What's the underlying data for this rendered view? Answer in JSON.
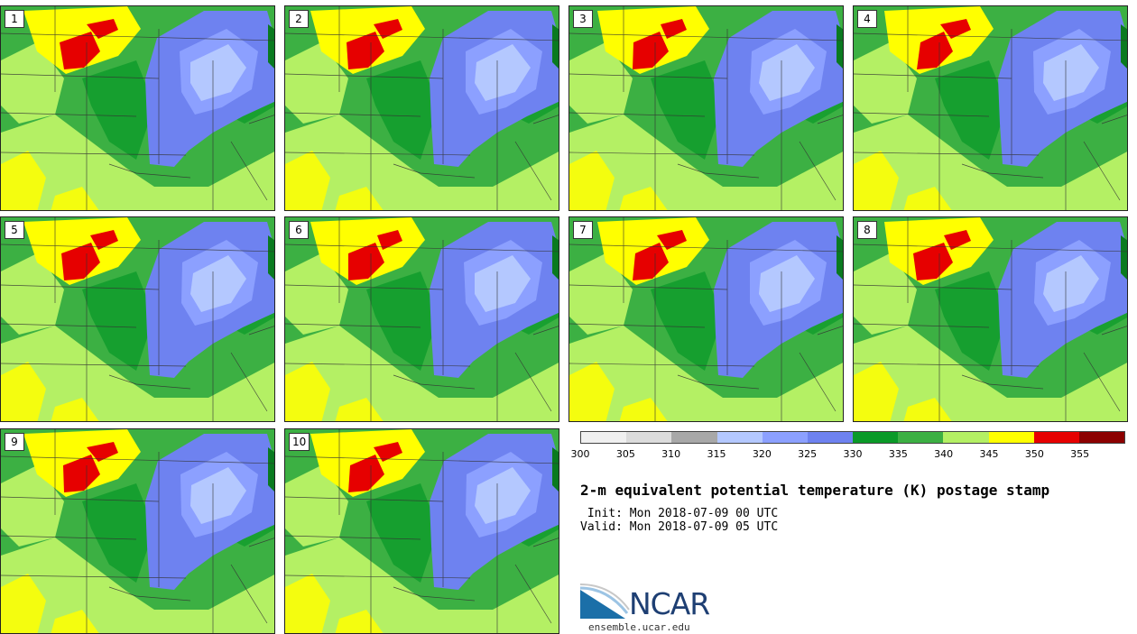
{
  "panels": [
    "1",
    "2",
    "3",
    "4",
    "5",
    "6",
    "7",
    "8",
    "9",
    "10"
  ],
  "colorbar": {
    "colors": [
      "#f0f0f0",
      "#dcdcdc",
      "#a8a8a8",
      "#b4c8ff",
      "#8ca0ff",
      "#6e82f0",
      "#0a9a28",
      "#3cb043",
      "#b4f064",
      "#ffff00",
      "#e60000",
      "#8c0000"
    ],
    "ticks": [
      "300",
      "305",
      "310",
      "315",
      "320",
      "325",
      "330",
      "335",
      "340",
      "345",
      "350",
      "355"
    ]
  },
  "title": "2-m equivalent potential temperature (K) postage stamp",
  "init": " Init: Mon 2018-07-09 00 UTC",
  "valid": "Valid: Mon 2018-07-09 05 UTC",
  "logo": {
    "text": "NCAR",
    "site": "ensemble.ucar.edu"
  }
}
